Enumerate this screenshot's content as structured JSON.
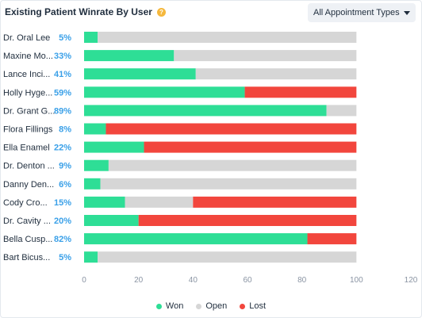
{
  "header": {
    "title": "Existing Patient Winrate By User",
    "info_icon": "info-icon",
    "filter_label": "All Appointment Types"
  },
  "colors": {
    "won": "#2ede96",
    "open": "#d6d6d6",
    "lost": "#f2463d",
    "percent": "#3aa0e8",
    "text": "#1f2d3d",
    "axis": "#8a94a3"
  },
  "chart_data": {
    "type": "bar",
    "orientation": "horizontal",
    "stacked": true,
    "categories": [
      "Dr. Oral Lee",
      "Maxine Mo...",
      "Lance Inci...",
      "Holly Hyge...",
      "Dr. Grant G...",
      "Flora Fillings",
      "Ella Enamel",
      "Dr. Denton ...",
      "Danny Den...",
      "Cody Cro...",
      "Dr. Cavity ...",
      "Bella Cusp...",
      "Bart Bicus..."
    ],
    "percent_labels": [
      "5%",
      "33%",
      "41%",
      "59%",
      "89%",
      "8%",
      "22%",
      "9%",
      "6%",
      "15%",
      "20%",
      "82%",
      "5%"
    ],
    "series": [
      {
        "name": "Won",
        "values": [
          5,
          33,
          41,
          59,
          89,
          8,
          22,
          9,
          6,
          15,
          20,
          82,
          5
        ]
      },
      {
        "name": "Open",
        "values": [
          95,
          67,
          59,
          0,
          11,
          0,
          0,
          91,
          94,
          25,
          0,
          0,
          95
        ]
      },
      {
        "name": "Lost",
        "values": [
          0,
          0,
          0,
          41,
          0,
          92,
          78,
          0,
          0,
          60,
          80,
          18,
          0
        ]
      }
    ],
    "x_ticks": [
      "0",
      "20",
      "40",
      "60",
      "80",
      "100",
      "120"
    ],
    "xlim": [
      0,
      120
    ],
    "grid": false,
    "legend_position": "bottom-center"
  }
}
